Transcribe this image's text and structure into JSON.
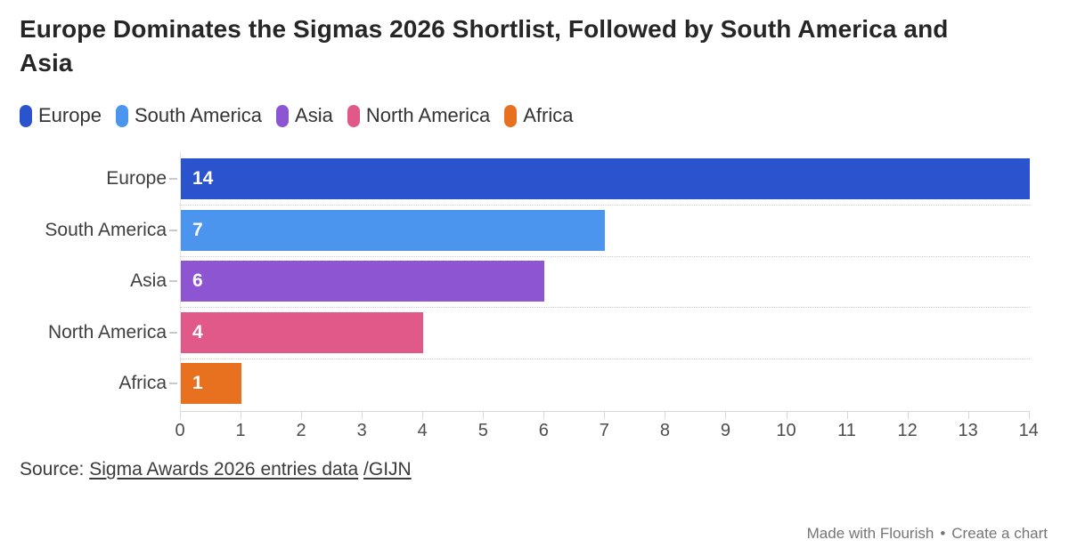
{
  "header": {
    "title_line1": "Europe Dominates the Sigmas 2026 Shortlist, Followed by South America and",
    "title_line2": "Asia"
  },
  "legend": {
    "items": [
      {
        "label": "Europe",
        "color": "#2b53cd"
      },
      {
        "label": "South America",
        "color": "#4b95ef"
      },
      {
        "label": "Asia",
        "color": "#8d55d2"
      },
      {
        "label": "North America",
        "color": "#e15989"
      },
      {
        "label": "Africa",
        "color": "#e7711f"
      }
    ]
  },
  "chart_data": {
    "type": "bar",
    "orientation": "horizontal",
    "title": "Europe Dominates the Sigmas 2026 Shortlist, Followed by South America and Asia",
    "categories": [
      "Europe",
      "South America",
      "Asia",
      "North America",
      "Africa"
    ],
    "values": [
      14,
      7,
      6,
      4,
      1
    ],
    "colors": [
      "#2b53cd",
      "#4b95ef",
      "#8d55d2",
      "#e15989",
      "#e7711f"
    ],
    "xlabel": "",
    "ylabel": "",
    "xlim": [
      0,
      14
    ],
    "x_ticks": [
      0,
      1,
      2,
      3,
      4,
      5,
      6,
      7,
      8,
      9,
      10,
      11,
      12,
      13,
      14
    ],
    "grid": "dotted row separators",
    "legend_position": "top"
  },
  "rows": [
    {
      "label": "Europe",
      "value_label": "14"
    },
    {
      "label": "South America",
      "value_label": "7"
    },
    {
      "label": "Asia",
      "value_label": "6"
    },
    {
      "label": "North America",
      "value_label": "4"
    },
    {
      "label": "Africa",
      "value_label": "1"
    }
  ],
  "source": {
    "prefix": "Source: ",
    "link1": "Sigma Awards 2026 entries data",
    "link2": "/GIJN"
  },
  "footer": {
    "made_with": "Made with Flourish",
    "separator": "•",
    "create_chart": "Create a chart"
  }
}
